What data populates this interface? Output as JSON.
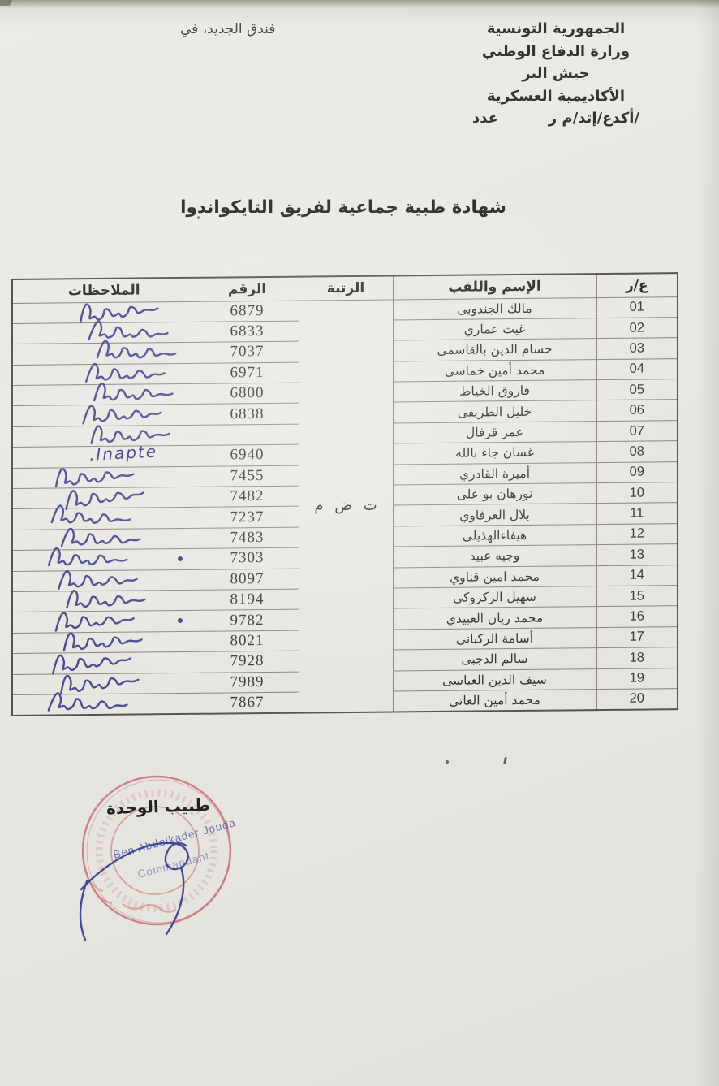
{
  "document": {
    "corner_note": "فندق الجديد، في",
    "letterhead": {
      "line1": "الجمهورية التونسية",
      "line2": "وزارة الدفاع الوطني",
      "line3": "جيش البر",
      "line4": "الأكاديمية العسكرية",
      "ref_label": "عدد",
      "ref_value": "/أكدع/إتد/م ر"
    },
    "title": "شهادة طبية جماعية لفريق التايكواندوا"
  },
  "table": {
    "headers": {
      "index": "ع/ر",
      "name": "الإسم واللقب",
      "rank": "الرتبة",
      "number": "الرقم",
      "notes": "الملاحظات"
    },
    "rank_shared": "ت ض م",
    "inapte_note": "Inapte.",
    "rows": [
      {
        "index": "01",
        "name": "مالك الجندوبى",
        "number": "6879",
        "note": "apte-signature"
      },
      {
        "index": "02",
        "name": "غيث عماري",
        "number": "6833",
        "note": "apte-signature"
      },
      {
        "index": "03",
        "name": "حسام الدين بالقاسمى",
        "number": "7037",
        "note": "apte-signature"
      },
      {
        "index": "04",
        "name": "محمد أمين خماسى",
        "number": "6971",
        "note": "apte-signature"
      },
      {
        "index": "05",
        "name": "فاروق الخياط",
        "number": "6800",
        "note": "apte-signature"
      },
      {
        "index": "06",
        "name": "خليل الطريفى",
        "number": "6838",
        "note": "apte-signature"
      },
      {
        "index": "07",
        "name": "عمر قرفال",
        "number": "",
        "note": "apte-signature"
      },
      {
        "index": "08",
        "name": "غسان جاء بالله",
        "number": "6940",
        "note": "inapte"
      },
      {
        "index": "09",
        "name": "أميرة القادري",
        "number": "7455",
        "note": "apte-signature"
      },
      {
        "index": "10",
        "name": "نورهان بو على",
        "number": "7482",
        "note": "apte-signature"
      },
      {
        "index": "11",
        "name": "بلال العرفاوي",
        "number": "7237",
        "note": "apte-signature"
      },
      {
        "index": "12",
        "name": "هيفاءالهذيلى",
        "number": "7483",
        "note": "apte-signature"
      },
      {
        "index": "13",
        "name": "وجيه عبيد",
        "number": "7303",
        "note": "apte-signature",
        "pen_dot": true
      },
      {
        "index": "14",
        "name": "محمد امين قناوي",
        "number": "8097",
        "note": "apte-signature"
      },
      {
        "index": "15",
        "name": "سهيل الركروكى",
        "number": "8194",
        "note": "apte-signature"
      },
      {
        "index": "16",
        "name": "محمد ريان العبيدي",
        "number": "9782",
        "note": "apte-signature",
        "pen_dot": true
      },
      {
        "index": "17",
        "name": "أسامة الركبانى",
        "number": "8021",
        "note": "apte-signature"
      },
      {
        "index": "18",
        "name": "سالم الدجبى",
        "number": "7928",
        "note": "apte-signature"
      },
      {
        "index": "19",
        "name": "سيف الدين العباسى",
        "number": "7989",
        "note": "apte-signature"
      },
      {
        "index": "20",
        "name": "محمد أمين العاتى",
        "number": "7867",
        "note": "apte-signature"
      }
    ]
  },
  "stamp": {
    "doctor_label": "طبيب الوحدة",
    "blue_line1": "Ben Abdelkader Jouda",
    "blue_line2": "Commandant"
  },
  "colors": {
    "paper": "#e9e7e2",
    "print_ink": "#2f2f2b",
    "pen_ink": "#3a3c8a",
    "stamp_red": "#c4606a",
    "stamp_blue": "#5b67b2"
  }
}
